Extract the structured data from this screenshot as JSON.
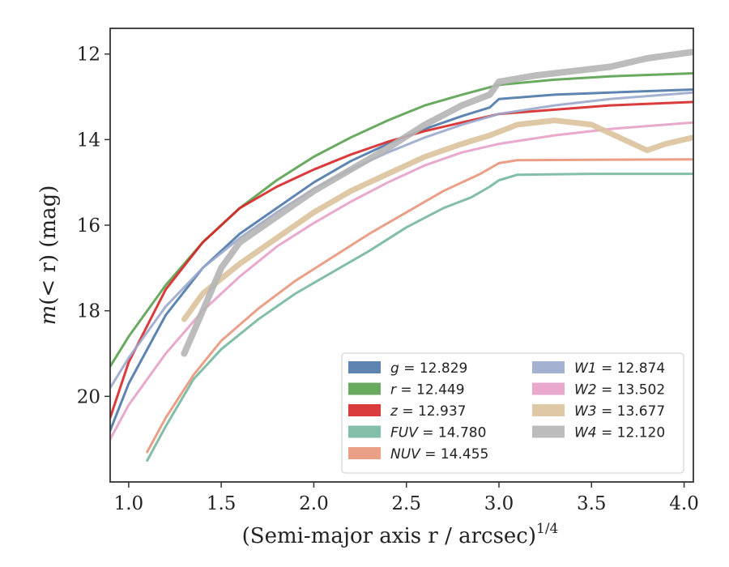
{
  "chart_data": {
    "type": "line",
    "xlabel": "(Semi-major axis r / arcsec)^{1/4}",
    "ylabel": "m(< r) (mag)",
    "xlim": [
      0.9,
      4.05
    ],
    "ylim": [
      22.0,
      11.4
    ],
    "y_inverted": true,
    "xticks": [
      "1.0",
      "1.5",
      "2.0",
      "2.5",
      "3.0",
      "3.5",
      "4.0"
    ],
    "yticks": [
      "12",
      "14",
      "16",
      "18",
      "20"
    ],
    "legend_position": "lower-right",
    "series": [
      {
        "name": "g = 12.829",
        "italic": "g",
        "value_text": " = 12.829",
        "color": "#4c78a8",
        "width": 3,
        "x": [
          0.9,
          1.0,
          1.2,
          1.4,
          1.6,
          1.8,
          2.0,
          2.2,
          2.4,
          2.6,
          2.8,
          2.95,
          3.0,
          3.3,
          3.6,
          4.05
        ],
        "y": [
          20.8,
          19.7,
          18.1,
          17.0,
          16.2,
          15.6,
          15.0,
          14.5,
          14.1,
          13.75,
          13.45,
          13.25,
          13.05,
          12.95,
          12.9,
          12.83
        ]
      },
      {
        "name": "r = 12.449",
        "italic": "r",
        "value_text": " = 12.449",
        "color": "#59a14f",
        "width": 3,
        "x": [
          0.9,
          1.0,
          1.2,
          1.4,
          1.6,
          1.8,
          2.0,
          2.2,
          2.4,
          2.6,
          2.8,
          3.0,
          3.3,
          3.6,
          4.05
        ],
        "y": [
          19.3,
          18.6,
          17.4,
          16.4,
          15.6,
          14.95,
          14.4,
          13.95,
          13.55,
          13.2,
          12.95,
          12.72,
          12.6,
          12.52,
          12.45
        ]
      },
      {
        "name": "z = 12.937",
        "italic": "z",
        "value_text": " = 12.937",
        "color": "#d62728",
        "width": 3,
        "x": [
          0.9,
          1.0,
          1.2,
          1.4,
          1.6,
          1.8,
          2.0,
          2.2,
          2.4,
          2.6,
          2.8,
          3.0,
          3.3,
          3.6,
          4.05
        ],
        "y": [
          20.5,
          19.2,
          17.5,
          16.4,
          15.6,
          15.1,
          14.7,
          14.35,
          14.05,
          13.8,
          13.6,
          13.4,
          13.3,
          13.2,
          13.12
        ]
      },
      {
        "name": "FUV = 14.780",
        "italic": "FUV",
        "value_text": " = 14.780",
        "color": "#76b7a0",
        "width": 3,
        "x": [
          1.1,
          1.2,
          1.35,
          1.5,
          1.7,
          1.9,
          2.1,
          2.3,
          2.5,
          2.7,
          2.85,
          2.95,
          3.0,
          3.1,
          3.5,
          4.05
        ],
        "y": [
          21.5,
          20.7,
          19.6,
          18.9,
          18.2,
          17.6,
          17.1,
          16.6,
          16.05,
          15.6,
          15.35,
          15.1,
          14.95,
          14.82,
          14.8,
          14.8
        ]
      },
      {
        "name": "NUV = 14.455",
        "italic": "NUV",
        "value_text": " = 14.455",
        "color": "#e8957a",
        "width": 3,
        "x": [
          1.1,
          1.2,
          1.35,
          1.5,
          1.7,
          1.9,
          2.1,
          2.3,
          2.5,
          2.7,
          2.9,
          3.0,
          3.1,
          3.5,
          4.05
        ],
        "y": [
          21.3,
          20.5,
          19.5,
          18.7,
          17.95,
          17.3,
          16.75,
          16.2,
          15.7,
          15.2,
          14.8,
          14.55,
          14.48,
          14.47,
          14.46
        ]
      },
      {
        "name": "W1 = 12.874",
        "italic": "W1",
        "value_text": " = 12.874",
        "color": "#9aa8cc",
        "width": 3,
        "x": [
          0.9,
          1.0,
          1.2,
          1.4,
          1.6,
          1.8,
          2.0,
          2.2,
          2.4,
          2.6,
          2.8,
          3.0,
          3.3,
          3.6,
          4.05
        ],
        "y": [
          19.8,
          19.1,
          17.9,
          17.0,
          16.3,
          15.7,
          15.15,
          14.7,
          14.3,
          13.95,
          13.65,
          13.4,
          13.2,
          13.05,
          12.9
        ]
      },
      {
        "name": "W2 = 13.502",
        "italic": "W2",
        "value_text": " = 13.502",
        "color": "#e6a0c8",
        "width": 3,
        "x": [
          0.9,
          1.0,
          1.2,
          1.4,
          1.6,
          1.8,
          2.0,
          2.2,
          2.4,
          2.6,
          2.8,
          3.0,
          3.3,
          3.6,
          4.05
        ],
        "y": [
          21.0,
          20.2,
          19.0,
          18.0,
          17.2,
          16.5,
          15.95,
          15.45,
          15.0,
          14.6,
          14.3,
          14.1,
          13.9,
          13.75,
          13.6
        ]
      },
      {
        "name": "W3 = 13.677",
        "italic": "W3",
        "value_text": " = 13.677",
        "color": "#dcc29c",
        "width": 7,
        "x": [
          1.3,
          1.4,
          1.6,
          1.8,
          2.0,
          2.2,
          2.4,
          2.6,
          2.8,
          2.95,
          3.1,
          3.3,
          3.5,
          3.6,
          3.7,
          3.8,
          3.9,
          4.05
        ],
        "y": [
          18.2,
          17.6,
          16.9,
          16.3,
          15.7,
          15.2,
          14.8,
          14.4,
          14.1,
          13.9,
          13.65,
          13.55,
          13.65,
          13.85,
          14.05,
          14.25,
          14.1,
          13.95
        ]
      },
      {
        "name": "W4 = 12.120",
        "italic": "W4",
        "value_text": " = 12.120",
        "color": "#b5b5b5",
        "width": 8,
        "x": [
          1.3,
          1.4,
          1.5,
          1.6,
          1.8,
          2.0,
          2.2,
          2.4,
          2.6,
          2.8,
          2.95,
          3.0,
          3.2,
          3.4,
          3.6,
          3.8,
          4.05
        ],
        "y": [
          19.0,
          18.0,
          17.0,
          16.4,
          15.8,
          15.2,
          14.7,
          14.2,
          13.65,
          13.2,
          12.95,
          12.65,
          12.5,
          12.4,
          12.3,
          12.1,
          11.95
        ]
      }
    ]
  }
}
